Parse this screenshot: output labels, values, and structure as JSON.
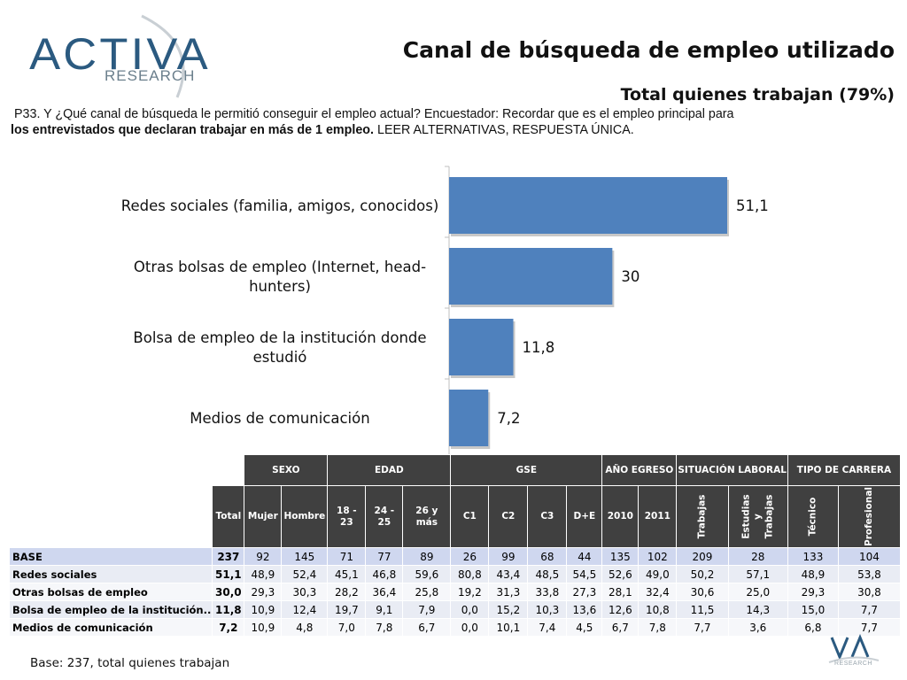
{
  "logo": {
    "word": "ACTIVA",
    "sub": "RESEARCH",
    "small_sub": "RESEARCH"
  },
  "title": "Canal de búsqueda de empleo utilizado",
  "subtitle": "Total quienes trabajan (79%)",
  "question": {
    "line1": "P33. Y ¿Qué canal de búsqueda le permitió conseguir el  empleo actual? Encuestador: Recordar que es el empleo principal para",
    "line2_bold": "los entrevistados que declaran trabajar en más de 1 empleo.",
    "line2_rest": " LEER ALTERNATIVAS, RESPUESTA ÚNICA."
  },
  "chart_data": {
    "type": "bar",
    "orientation": "horizontal",
    "categories": [
      "Redes sociales (familia, amigos, conocidos)",
      "Otras bolsas de empleo (Internet, head-hunters)",
      "Bolsa de empleo de la institución donde estudió",
      "Medios de comunicación"
    ],
    "category_lines": [
      [
        "Redes sociales (familia, amigos, conocidos)"
      ],
      [
        "Otras bolsas de empleo (Internet, head-",
        "hunters)"
      ],
      [
        "Bolsa de empleo de la institución donde",
        "estudió"
      ],
      [
        "Medios de comunicación"
      ]
    ],
    "values": [
      51.1,
      30,
      11.8,
      7.2
    ],
    "value_labels": [
      "51,1",
      "30",
      "11,8",
      "7,2"
    ],
    "bar_color": "#4f81bd",
    "xlim": [
      0,
      55
    ],
    "grid": false
  },
  "table": {
    "groups": [
      "SEXO",
      "EDAD",
      "GSE",
      "AÑO EGRESO",
      "SITUACIÓN LABORAL",
      "TIPO DE CARRERA"
    ],
    "columns": [
      "Total",
      "Mujer",
      "Hombre",
      "18 - 23",
      "24 - 25",
      "26 y más",
      "C1",
      "C2",
      "C3",
      "D+E",
      "2010",
      "2011",
      "Trabajas",
      "Estudias y Trabajas",
      "Técnico",
      "Profesional"
    ],
    "rows": [
      {
        "label": "BASE",
        "values": [
          "237",
          "92",
          "145",
          "71",
          "77",
          "89",
          "26",
          "99",
          "68",
          "44",
          "135",
          "102",
          "209",
          "28",
          "133",
          "104"
        ]
      },
      {
        "label": "Redes sociales",
        "values": [
          "51,1",
          "48,9",
          "52,4",
          "45,1",
          "46,8",
          "59,6",
          "80,8",
          "43,4",
          "48,5",
          "54,5",
          "52,6",
          "49,0",
          "50,2",
          "57,1",
          "48,9",
          "53,8"
        ]
      },
      {
        "label": "Otras bolsas de empleo",
        "values": [
          "30,0",
          "29,3",
          "30,3",
          "28,2",
          "36,4",
          "25,8",
          "19,2",
          "31,3",
          "33,8",
          "27,3",
          "28,1",
          "32,4",
          "30,6",
          "25,0",
          "29,3",
          "30,8"
        ]
      },
      {
        "label": "Bolsa de empleo de la institución..",
        "values": [
          "11,8",
          "10,9",
          "12,4",
          "19,7",
          "9,1",
          "7,9",
          "0,0",
          "15,2",
          "10,3",
          "13,6",
          "12,6",
          "10,8",
          "11,5",
          "14,3",
          "15,0",
          "7,7"
        ]
      },
      {
        "label": "Medios de comunicación",
        "values": [
          "7,2",
          "10,9",
          "4,8",
          "7,0",
          "7,8",
          "6,7",
          "0,0",
          "10,1",
          "7,4",
          "4,5",
          "6,7",
          "7,8",
          "7,7",
          "3,6",
          "6,8",
          "7,7"
        ]
      }
    ]
  },
  "footnote": "Base: 237, total quienes trabajan"
}
